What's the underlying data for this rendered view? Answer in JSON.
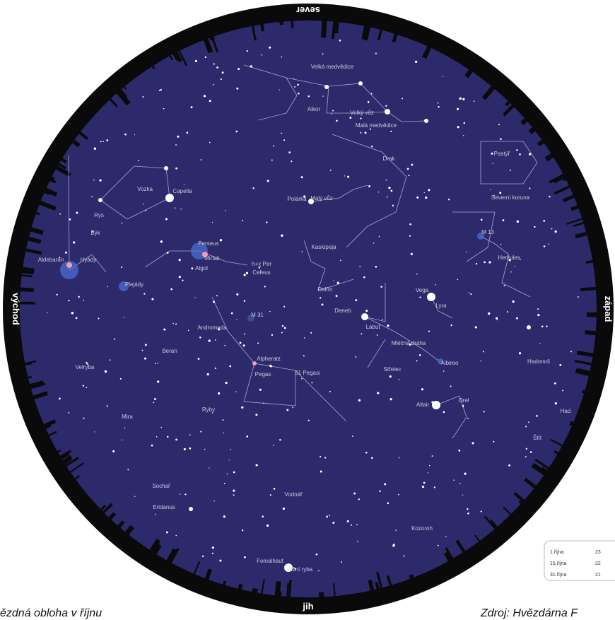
{
  "directions": {
    "north": "sever",
    "east": "východ",
    "west": "západ",
    "south": "jih"
  },
  "labels": [
    "Velká medvědice",
    "Velký vůz",
    "Alkor",
    "Malá medvědice",
    "Drak",
    "Malý vůz",
    "Polárka",
    "Vozka",
    "Capella",
    "Rys",
    "Býk",
    "Aldebaran",
    "Hyády",
    "Plejády",
    "Perseus",
    "Algol",
    "Mirfak",
    "h+χ Per",
    "Kasiopeja",
    "Cefeus",
    "Delfín",
    "M 31",
    "Andromeda",
    "Beran",
    "Velryba",
    "Mira",
    "Ryby",
    "Alpheratz",
    "Pegas",
    "51 Pegasi",
    "Vodnář",
    "Fomalhaut",
    "Jižní ryba",
    "Sochař",
    "Eridanus",
    "Kozoroh",
    "Labuť",
    "Deneb",
    "Vega",
    "Lyra",
    "Mléčná dráha",
    "Albireo",
    "Orel",
    "Altair",
    "Štít",
    "Herkules",
    "M 13",
    "Severní koruna",
    "Pastýř",
    "Hadonoš",
    "Had",
    "Střelec"
  ],
  "legend": [
    [
      "1.října",
      "23"
    ],
    [
      "15.října",
      "22"
    ],
    [
      "31.října",
      "21"
    ]
  ],
  "caption": "ězdná obloha v říjnu",
  "source": "Zdroj: Hvězdárna F"
}
